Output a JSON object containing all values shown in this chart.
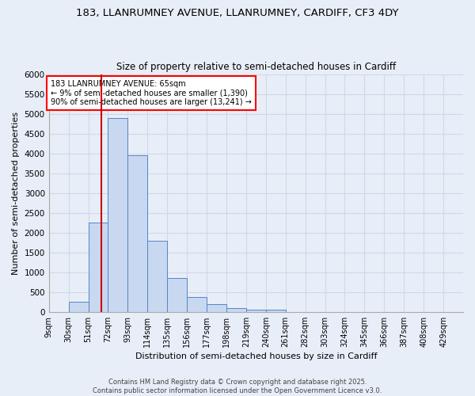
{
  "title_line1": "183, LLANRUMNEY AVENUE, LLANRUMNEY, CARDIFF, CF3 4DY",
  "title_line2": "Size of property relative to semi-detached houses in Cardiff",
  "xlabel": "Distribution of semi-detached houses by size in Cardiff",
  "ylabel": "Number of semi-detached properties",
  "bin_labels": [
    "9sqm",
    "30sqm",
    "51sqm",
    "72sqm",
    "93sqm",
    "114sqm",
    "135sqm",
    "156sqm",
    "177sqm",
    "198sqm",
    "219sqm",
    "240sqm",
    "261sqm",
    "282sqm",
    "303sqm",
    "324sqm",
    "345sqm",
    "366sqm",
    "387sqm",
    "408sqm",
    "429sqm"
  ],
  "bin_edges": [
    9,
    30,
    51,
    72,
    93,
    114,
    135,
    156,
    177,
    198,
    219,
    240,
    261,
    282,
    303,
    324,
    345,
    366,
    387,
    408,
    429
  ],
  "bar_heights": [
    0,
    265,
    2250,
    4900,
    3950,
    1800,
    850,
    380,
    195,
    100,
    65,
    50,
    0,
    0,
    0,
    0,
    0,
    0,
    0,
    0,
    0
  ],
  "bar_color": "#c8d8f0",
  "bar_edge_color": "#5585c5",
  "property_line_x": 65,
  "property_line_color": "#cc0000",
  "annotation_text": "183 LLANRUMNEY AVENUE: 65sqm\n← 9% of semi-detached houses are smaller (1,390)\n90% of semi-detached houses are larger (13,241) →",
  "annotation_box_color": "white",
  "annotation_box_edge": "red",
  "ylim": [
    0,
    6000
  ],
  "yticks": [
    0,
    500,
    1000,
    1500,
    2000,
    2500,
    3000,
    3500,
    4000,
    4500,
    5000,
    5500,
    6000
  ],
  "background_color": "#e8eef8",
  "grid_color": "#d0d8e8",
  "footer_text": "Contains HM Land Registry data © Crown copyright and database right 2025.\nContains public sector information licensed under the Open Government Licence v3.0.",
  "figsize": [
    6.0,
    5.0
  ],
  "dpi": 100
}
